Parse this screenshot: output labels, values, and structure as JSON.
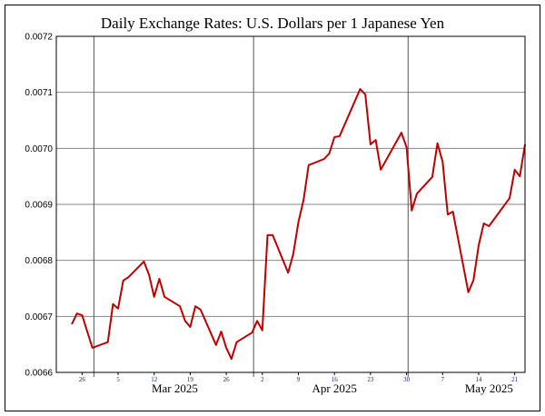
{
  "chart_data": {
    "type": "line",
    "title": "Daily Exchange Rates: U.S. Dollars per 1 Japanese Yen",
    "xlabel": "",
    "ylabel": "",
    "ylim": [
      0.0066,
      0.0072
    ],
    "xlim": [
      "2025-02-21",
      "2025-05-23"
    ],
    "yticks": [
      "0.0066",
      "0.0067",
      "0.0068",
      "0.0069",
      "0.0070",
      "0.0071",
      "0.0072"
    ],
    "day_ticks": [
      {
        "date": "2025-02-26",
        "label": "26"
      },
      {
        "date": "2025-03-05",
        "label": "5"
      },
      {
        "date": "2025-03-12",
        "label": "12"
      },
      {
        "date": "2025-03-19",
        "label": "19"
      },
      {
        "date": "2025-03-26",
        "label": "26"
      },
      {
        "date": "2025-04-02",
        "label": "2"
      },
      {
        "date": "2025-04-09",
        "label": "9"
      },
      {
        "date": "2025-04-16",
        "label": "16"
      },
      {
        "date": "2025-04-23",
        "label": "23"
      },
      {
        "date": "2025-04-30",
        "label": "30"
      },
      {
        "date": "2025-05-07",
        "label": "7"
      },
      {
        "date": "2025-05-14",
        "label": "14"
      },
      {
        "date": "2025-05-21",
        "label": "21"
      }
    ],
    "month_labels": [
      {
        "date": "2025-03-16",
        "label": "Mar 2025"
      },
      {
        "date": "2025-04-16",
        "label": "Apr 2025"
      },
      {
        "date": "2025-05-16",
        "label": "May 2025"
      }
    ],
    "month_lines": [
      "2025-03-01",
      "2025-04-01",
      "2025-05-01"
    ],
    "grid": true,
    "line_color": "#c00000",
    "series": [
      {
        "x": [
          "2025-02-24",
          "2025-02-25",
          "2025-02-26",
          "2025-02-28",
          "2025-03-03",
          "2025-03-04",
          "2025-03-05",
          "2025-03-06",
          "2025-03-07",
          "2025-03-10",
          "2025-03-11",
          "2025-03-12",
          "2025-03-13",
          "2025-03-14",
          "2025-03-17",
          "2025-03-18",
          "2025-03-19",
          "2025-03-20",
          "2025-03-21",
          "2025-03-24",
          "2025-03-25",
          "2025-03-26",
          "2025-03-27",
          "2025-03-28",
          "2025-03-31",
          "2025-04-01",
          "2025-04-02",
          "2025-04-03",
          "2025-04-04",
          "2025-04-07",
          "2025-04-08",
          "2025-04-09",
          "2025-04-10",
          "2025-04-11",
          "2025-04-14",
          "2025-04-15",
          "2025-04-16",
          "2025-04-17",
          "2025-04-21",
          "2025-04-22",
          "2025-04-23",
          "2025-04-24",
          "2025-04-25",
          "2025-04-29",
          "2025-04-30",
          "2025-05-01",
          "2025-05-02",
          "2025-05-05",
          "2025-05-06",
          "2025-05-07",
          "2025-05-08",
          "2025-05-09",
          "2025-05-12",
          "2025-05-13",
          "2025-05-14",
          "2025-05-15",
          "2025-05-16",
          "2025-05-20",
          "2025-05-21",
          "2025-05-22",
          "2025-05-23"
        ],
        "values": [
          0.006686,
          0.006705,
          0.006702,
          0.006644,
          0.006654,
          0.006722,
          0.006714,
          0.006764,
          0.00677,
          0.006798,
          0.006774,
          0.006735,
          0.006767,
          0.006735,
          0.006718,
          0.006692,
          0.006681,
          0.006718,
          0.006712,
          0.006649,
          0.006673,
          0.006644,
          0.006624,
          0.006654,
          0.006671,
          0.006692,
          0.006675,
          0.006845,
          0.006845,
          0.006778,
          0.006811,
          0.006868,
          0.006908,
          0.00697,
          0.006981,
          0.006991,
          0.00702,
          0.007022,
          0.007106,
          0.007096,
          0.007007,
          0.007015,
          0.006962,
          0.007028,
          0.007002,
          0.006889,
          0.006919,
          0.006949,
          0.007009,
          0.006976,
          0.006882,
          0.006887,
          0.006743,
          0.006765,
          0.006827,
          0.006866,
          0.006861,
          0.006911,
          0.006962,
          0.00695,
          0.007007
        ]
      }
    ]
  }
}
